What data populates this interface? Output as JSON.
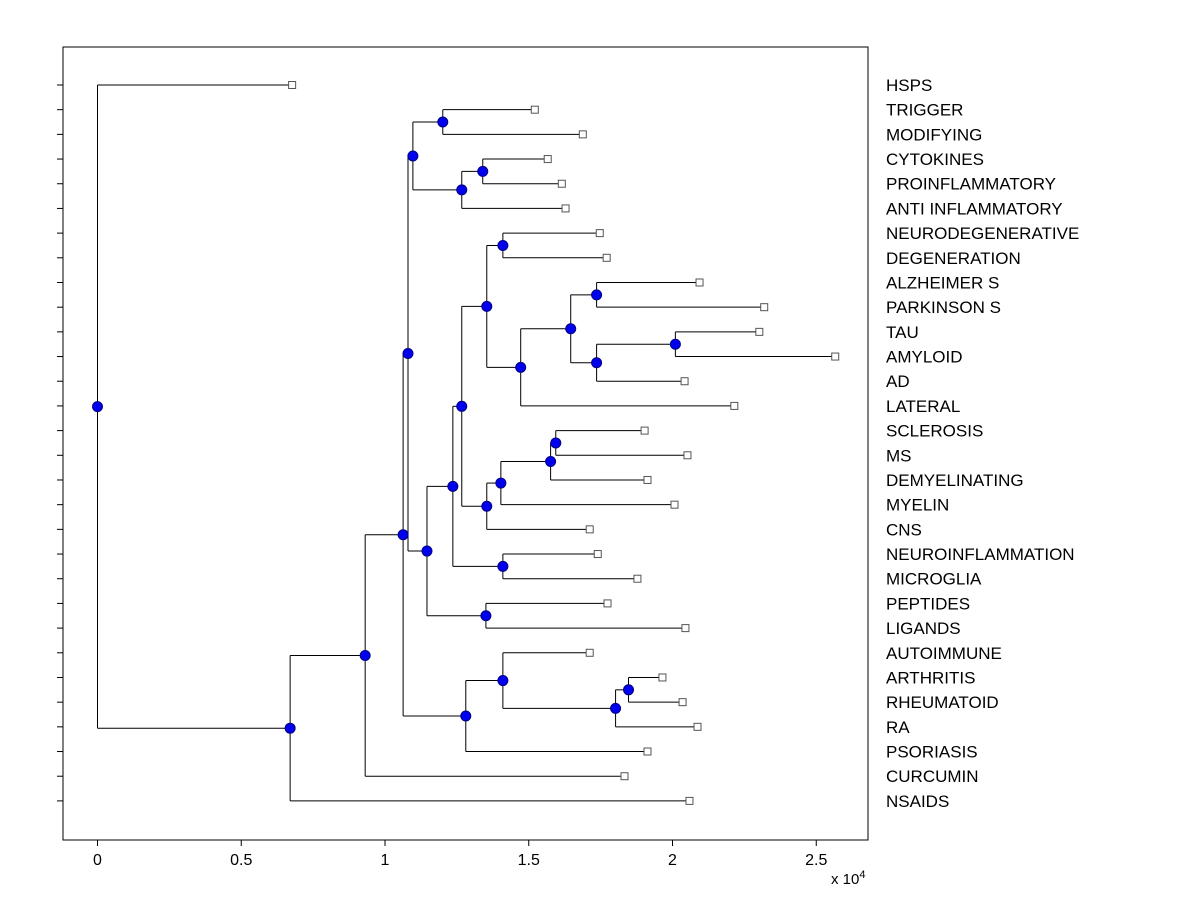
{
  "figure": {
    "background_color": "#ffffff"
  },
  "chart_data": {
    "type": "dendrogram",
    "title": "",
    "orientation": "horizontal-left-to-right",
    "line_color": "#000000",
    "leaf_label_color": "#000000",
    "marker_colors": {
      "internal_fill": "#0000ee",
      "internal_stroke": "#000080",
      "leaf_fill": "#ffffff",
      "leaf_stroke": "#555555"
    },
    "x_axis": {
      "xlim": [
        -1200,
        26800
      ],
      "ticks": [
        {
          "value": 0,
          "label": "0"
        },
        {
          "value": 5000,
          "label": "0.5"
        },
        {
          "value": 10000,
          "label": "1"
        },
        {
          "value": 15000,
          "label": "1.5"
        },
        {
          "value": 20000,
          "label": "2"
        },
        {
          "value": 25000,
          "label": "2.5"
        }
      ],
      "multiplier_label": "x 10",
      "multiplier_exponent": "4"
    },
    "y_axis": {
      "tick_per_leaf": true,
      "labels_side": "right"
    },
    "leaves": [
      {
        "id": "L1",
        "label": "HSPS",
        "x": 6770
      },
      {
        "id": "L2",
        "label": "TRIGGER",
        "x": 15210
      },
      {
        "id": "L3",
        "label": "MODIFYING",
        "x": 16880
      },
      {
        "id": "L4",
        "label": "CYTOKINES",
        "x": 15660
      },
      {
        "id": "L5",
        "label": "PROINFLAMMATORY",
        "x": 16150
      },
      {
        "id": "L6",
        "label": "ANTI INFLAMMATORY",
        "x": 16280
      },
      {
        "id": "L7",
        "label": "NEURODEGENERATIVE",
        "x": 17470
      },
      {
        "id": "L8",
        "label": "DEGENERATION",
        "x": 17710
      },
      {
        "id": "L9",
        "label": "ALZHEIMER S",
        "x": 20940
      },
      {
        "id": "L10",
        "label": "PARKINSON S",
        "x": 23190
      },
      {
        "id": "L11",
        "label": "TAU",
        "x": 23020
      },
      {
        "id": "L12",
        "label": "AMYLOID",
        "x": 25660
      },
      {
        "id": "L13",
        "label": "AD",
        "x": 20420
      },
      {
        "id": "L14",
        "label": "LATERAL",
        "x": 22150
      },
      {
        "id": "L15",
        "label": "SCLEROSIS",
        "x": 19030
      },
      {
        "id": "L16",
        "label": "MS",
        "x": 20520
      },
      {
        "id": "L17",
        "label": "DEMYELINATING",
        "x": 19130
      },
      {
        "id": "L18",
        "label": "MYELIN",
        "x": 20070
      },
      {
        "id": "L19",
        "label": "CNS",
        "x": 17120
      },
      {
        "id": "L20",
        "label": "NEUROINFLAMMATION",
        "x": 17400
      },
      {
        "id": "L21",
        "label": "MICROGLIA",
        "x": 18780
      },
      {
        "id": "L22",
        "label": "PEPTIDES",
        "x": 17740
      },
      {
        "id": "L23",
        "label": "LIGANDS",
        "x": 20450
      },
      {
        "id": "L24",
        "label": "AUTOIMMUNE",
        "x": 17120
      },
      {
        "id": "L25",
        "label": "ARTHRITIS",
        "x": 19650
      },
      {
        "id": "L26",
        "label": "RHEUMATOID",
        "x": 20350
      },
      {
        "id": "L27",
        "label": "RA",
        "x": 20870
      },
      {
        "id": "L28",
        "label": "PSORIASIS",
        "x": 19130
      },
      {
        "id": "L29",
        "label": "CURCUMIN",
        "x": 18330
      },
      {
        "id": "L30",
        "label": "NSAIDS",
        "x": 20590
      }
    ],
    "internal_nodes": [
      {
        "id": "N1",
        "x": 12010,
        "children": [
          "L2",
          "L3"
        ]
      },
      {
        "id": "N2",
        "x": 13400,
        "children": [
          "L4",
          "L5"
        ]
      },
      {
        "id": "N3",
        "x": 12670,
        "children": [
          "N2",
          "L6"
        ]
      },
      {
        "id": "N4",
        "x": 10970,
        "children": [
          "N1",
          "N3"
        ]
      },
      {
        "id": "N5",
        "x": 14100,
        "children": [
          "L7",
          "L8"
        ]
      },
      {
        "id": "N6",
        "x": 17360,
        "children": [
          "L9",
          "L10"
        ]
      },
      {
        "id": "N7",
        "x": 20100,
        "children": [
          "L11",
          "L12"
        ]
      },
      {
        "id": "N8",
        "x": 17360,
        "children": [
          "N7",
          "L13"
        ]
      },
      {
        "id": "N9",
        "x": 16460,
        "children": [
          "N6",
          "N8"
        ]
      },
      {
        "id": "N10",
        "x": 14720,
        "children": [
          "N9",
          "L14"
        ]
      },
      {
        "id": "N11",
        "x": 13540,
        "children": [
          "N5",
          "N10"
        ]
      },
      {
        "id": "N12",
        "x": 15940,
        "children": [
          "L15",
          "L16"
        ]
      },
      {
        "id": "N13",
        "x": 15760,
        "children": [
          "N12",
          "L17"
        ]
      },
      {
        "id": "N14",
        "x": 14030,
        "children": [
          "N13",
          "L18"
        ]
      },
      {
        "id": "N15",
        "x": 13540,
        "children": [
          "N14",
          "L19"
        ]
      },
      {
        "id": "N16",
        "x": 12670,
        "children": [
          "N11",
          "N15"
        ]
      },
      {
        "id": "N17",
        "x": 14100,
        "children": [
          "L20",
          "L21"
        ]
      },
      {
        "id": "N18",
        "x": 12360,
        "children": [
          "N16",
          "N17"
        ]
      },
      {
        "id": "N19",
        "x": 13510,
        "children": [
          "L22",
          "L23"
        ]
      },
      {
        "id": "N20",
        "x": 11460,
        "children": [
          "N18",
          "N19"
        ]
      },
      {
        "id": "N21",
        "x": 10800,
        "children": [
          "N4",
          "N20"
        ]
      },
      {
        "id": "N22",
        "x": 18470,
        "children": [
          "L25",
          "L26"
        ]
      },
      {
        "id": "N23",
        "x": 18020,
        "children": [
          "N22",
          "L27"
        ]
      },
      {
        "id": "N24",
        "x": 14100,
        "children": [
          "L24",
          "N23"
        ]
      },
      {
        "id": "N25",
        "x": 12810,
        "children": [
          "N24",
          "L28"
        ]
      },
      {
        "id": "N26",
        "x": 10630,
        "children": [
          "N21",
          "N25"
        ]
      },
      {
        "id": "N27",
        "x": 9310,
        "children": [
          "N26",
          "L29"
        ]
      },
      {
        "id": "N28",
        "x": 6700,
        "children": [
          "N27",
          "L30"
        ]
      },
      {
        "id": "ROOT",
        "x": 0,
        "children": [
          "L1",
          "N28"
        ]
      }
    ],
    "root_id": "ROOT"
  }
}
